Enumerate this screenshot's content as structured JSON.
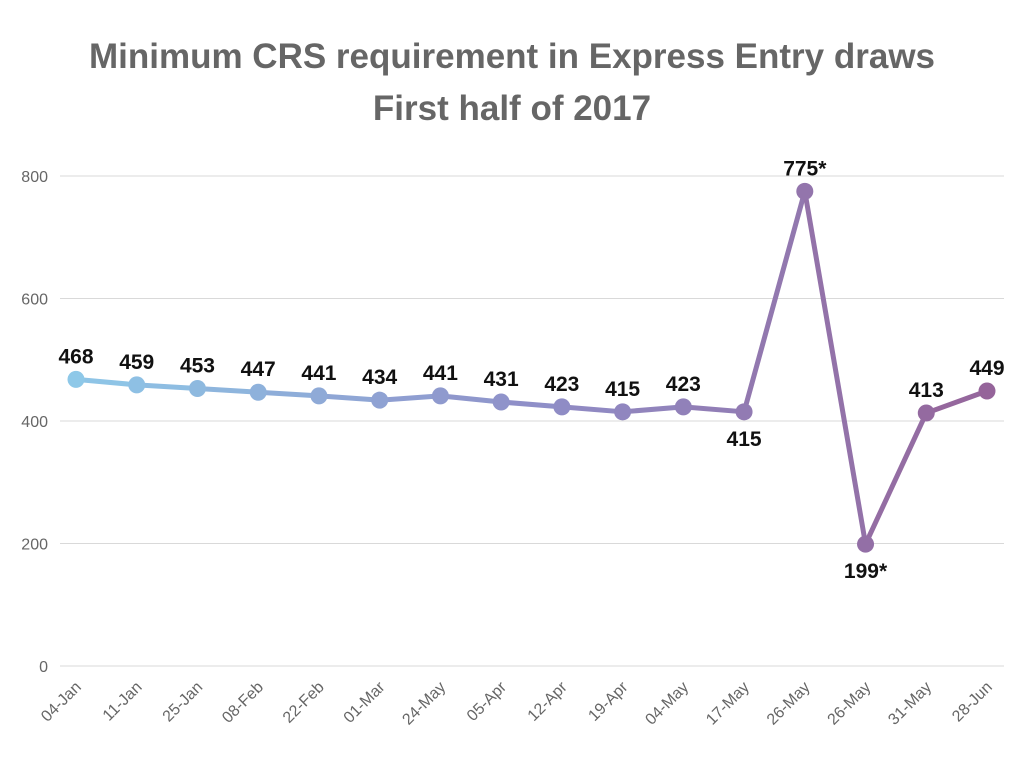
{
  "chart_data": {
    "type": "line",
    "title": "Minimum CRS requirement in Express Entry draws",
    "subtitle": "First half of 2017",
    "xlabel": "",
    "ylabel": "",
    "ylim": [
      0,
      800
    ],
    "yticks": [
      0,
      200,
      400,
      600,
      800
    ],
    "grid": true,
    "categories": [
      "04-Jan",
      "11-Jan",
      "25-Jan",
      "08-Feb",
      "22-Feb",
      "01-Mar",
      "24-May",
      "05-Apr",
      "12-Apr",
      "19-Apr",
      "04-May",
      "17-May",
      "26-May",
      "26-May",
      "31-May",
      "28-Jun"
    ],
    "values": [
      468,
      459,
      453,
      447,
      441,
      434,
      441,
      431,
      423,
      415,
      423,
      415,
      775,
      199,
      413,
      449
    ],
    "data_labels": [
      "468",
      "459",
      "453",
      "447",
      "441",
      "434",
      "441",
      "431",
      "423",
      "415",
      "423",
      "415",
      "775*",
      "199*",
      "413",
      "449"
    ],
    "label_placement": [
      "above",
      "above",
      "above",
      "above",
      "above",
      "above",
      "above",
      "above",
      "above",
      "above",
      "above",
      "below",
      "above",
      "below",
      "above",
      "above"
    ],
    "colors": {
      "start": "#8ec8e8",
      "mid": "#8f8fc8",
      "end": "#95649a",
      "grid": "#d9d9d9",
      "axis_text": "#666666"
    }
  }
}
